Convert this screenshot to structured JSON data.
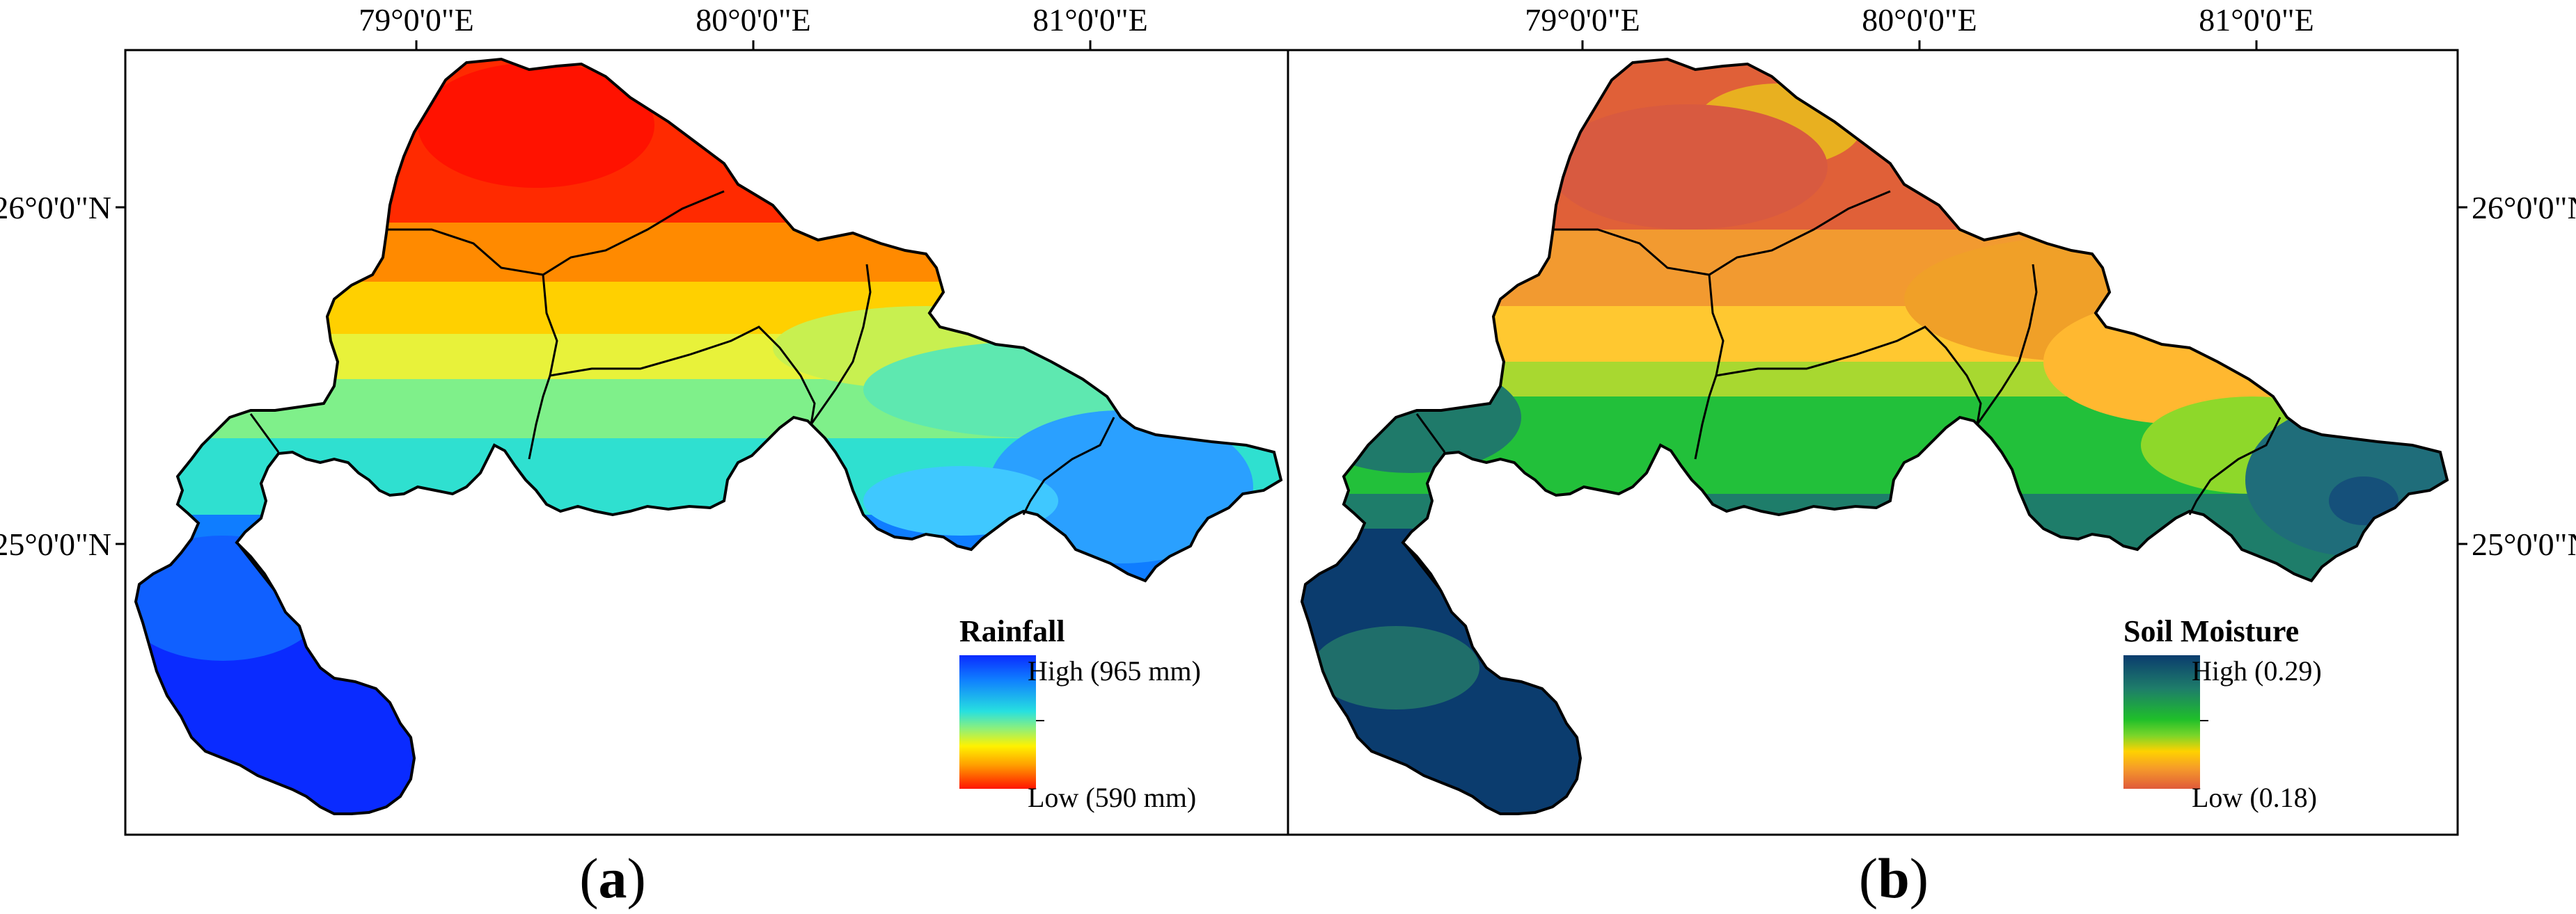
{
  "figure": {
    "panels": [
      {
        "id": "a",
        "caption_open": "(",
        "caption_letter": "a",
        "caption_close": ")",
        "top_axis_labels": [
          "79°0'0\"E",
          "80°0'0\"E",
          "81°0'0\"E"
        ],
        "side_axis_labels": [
          "26°0'0\"N",
          "25°0'0\"N"
        ],
        "legend": {
          "title": "Rainfall",
          "high_label": "High (965 mm)",
          "low_label": "Low (590 mm)",
          "colors": [
            "#0a2bff",
            "#0f7dff",
            "#27e0e0",
            "#8ef07a",
            "#fff200",
            "#ffa000",
            "#ff1500"
          ]
        }
      },
      {
        "id": "b",
        "caption_open": "(",
        "caption_letter": "b",
        "caption_close": ")",
        "top_axis_labels": [
          "79°0'0\"E",
          "80°0'0\"E",
          "81°0'0\"E"
        ],
        "side_axis_labels": [
          "26°0'0\"N",
          "25°0'0\"N"
        ],
        "legend": {
          "title": "Soil Moisture",
          "high_label": "High (0.29)",
          "low_label": "Low (0.18)",
          "colors": [
            "#0b3c6e",
            "#1e7d6a",
            "#1fbf2a",
            "#79d52a",
            "#ffd200",
            "#f59a2a",
            "#e05a3a"
          ]
        }
      }
    ]
  }
}
